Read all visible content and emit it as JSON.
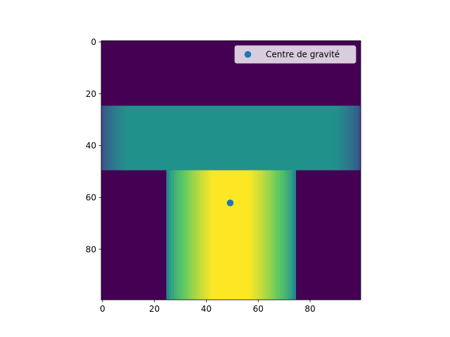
{
  "chart_data": {
    "type": "heatmap",
    "title": "",
    "xlabel": "",
    "ylabel": "",
    "grid": false,
    "colormap": "viridis",
    "image_shape": [
      100,
      100
    ],
    "xlim": [
      -0.5,
      99.5
    ],
    "ylim": [
      99.5,
      -0.5
    ],
    "y_axis_inverted": true,
    "xticks": [
      0,
      20,
      40,
      60,
      80
    ],
    "yticks": [
      0,
      20,
      40,
      60,
      80
    ],
    "regions": [
      {
        "name": "top-bar",
        "rows": [
          25,
          49
        ],
        "cols": [
          0,
          99
        ],
        "value": 0.5,
        "edge_fade_columns": 10
      },
      {
        "name": "stem",
        "rows": [
          50,
          99
        ],
        "cols": [
          25,
          74
        ],
        "value": 1.0,
        "edge_fade_columns": 18
      }
    ],
    "background_value": 0.0,
    "points": [
      {
        "x": 49.2,
        "y": 62.1,
        "label": "Centre de gravité"
      }
    ],
    "legend": {
      "position": "upper right",
      "entries": [
        {
          "label": "Centre de gravité",
          "marker": "circle",
          "color": "#1f77b4"
        }
      ]
    }
  }
}
